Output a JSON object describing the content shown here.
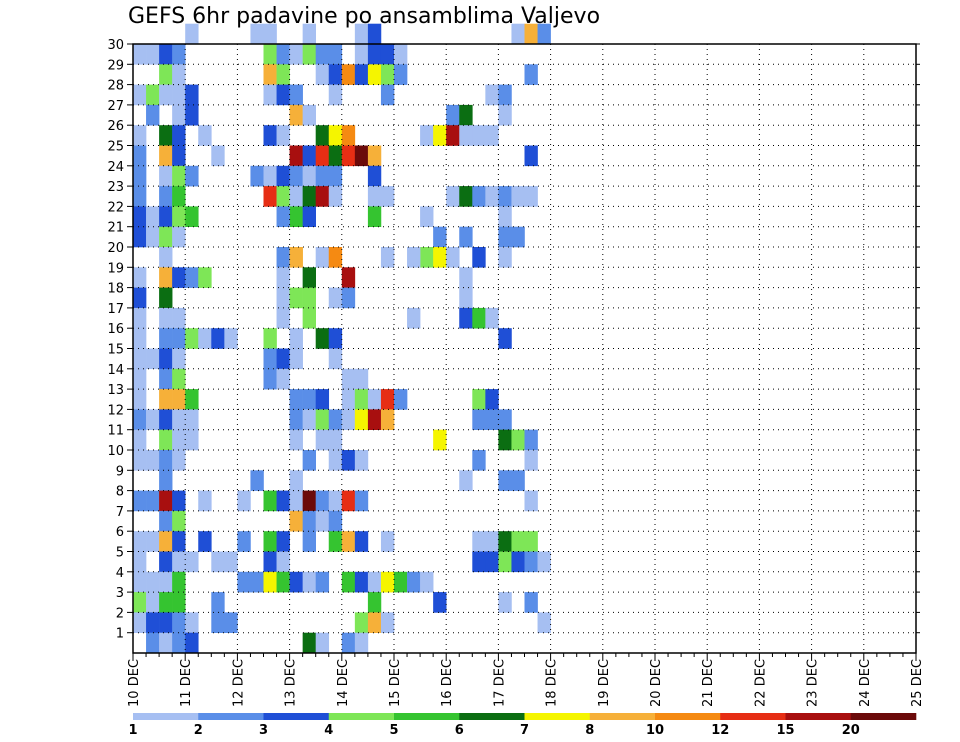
{
  "chart_data": {
    "type": "heatmap",
    "title": "GEFS 6hr padavine po ansamblima Valjevo",
    "xlabel": "",
    "ylabel": "",
    "x_ticks": [
      "10 DEC",
      "11 DEC",
      "12 DEC",
      "13 DEC",
      "14 DEC",
      "15 DEC",
      "16 DEC",
      "17 DEC",
      "18 DEC",
      "19 DEC",
      "20 DEC",
      "21 DEC",
      "22 DEC",
      "23 DEC",
      "24 DEC",
      "25 DEC"
    ],
    "y_ticks": [
      "1",
      "2",
      "3",
      "4",
      "5",
      "6",
      "7",
      "8",
      "9",
      "10",
      "11",
      "12",
      "13",
      "14",
      "15",
      "16",
      "17",
      "18",
      "19",
      "20",
      "21",
      "22",
      "23",
      "24",
      "25",
      "26",
      "27",
      "28",
      "29",
      "30"
    ],
    "y_range": [
      0,
      30
    ],
    "x_steps_per_day": 4,
    "grid": "dotted",
    "legend": {
      "position": "bottom",
      "labels": [
        "1",
        "2",
        "3",
        "4",
        "5",
        "6",
        "7",
        "8",
        "10",
        "12",
        "15",
        "20"
      ],
      "colors": [
        "#a6bff2",
        "#5a8ee8",
        "#1f4fd6",
        "#7ee657",
        "#35c430",
        "#0b6e12",
        "#f5f500",
        "#f6b039",
        "#f58a12",
        "#e62e14",
        "#a80f0f",
        "#6b0a0a"
      ]
    },
    "colorscale": [
      "#a6bff2",
      "#5a8ee8",
      "#1f4fd6",
      "#7ee657",
      "#35c430",
      "#0b6e12",
      "#f5f500",
      "#f6b039",
      "#f58a12",
      "#e62e14",
      "#a80f0f",
      "#6b0a0a"
    ],
    "cell_format": "[member, time_step_from_10DEC_00Z, color_class]",
    "cells": [
      [
        30,
        4,
        0
      ],
      [
        30,
        9,
        0
      ],
      [
        30,
        10,
        0
      ],
      [
        30,
        13,
        0
      ],
      [
        30,
        17,
        0
      ],
      [
        30,
        18,
        2
      ],
      [
        30,
        29,
        0
      ],
      [
        30,
        30,
        7
      ],
      [
        30,
        31,
        1
      ],
      [
        29,
        0,
        0
      ],
      [
        29,
        1,
        0
      ],
      [
        29,
        2,
        2
      ],
      [
        29,
        3,
        1
      ],
      [
        29,
        10,
        3
      ],
      [
        29,
        11,
        1
      ],
      [
        29,
        12,
        0
      ],
      [
        29,
        13,
        3
      ],
      [
        29,
        14,
        1
      ],
      [
        29,
        15,
        1
      ],
      [
        29,
        17,
        0
      ],
      [
        29,
        18,
        2
      ],
      [
        29,
        19,
        2
      ],
      [
        29,
        20,
        0
      ],
      [
        28,
        2,
        3
      ],
      [
        28,
        3,
        0
      ],
      [
        28,
        10,
        7
      ],
      [
        28,
        11,
        3
      ],
      [
        28,
        14,
        0
      ],
      [
        28,
        15,
        2
      ],
      [
        28,
        16,
        8
      ],
      [
        28,
        17,
        2
      ],
      [
        28,
        18,
        6
      ],
      [
        28,
        19,
        3
      ],
      [
        28,
        20,
        1
      ],
      [
        28,
        30,
        1
      ],
      [
        27,
        0,
        0
      ],
      [
        27,
        1,
        3
      ],
      [
        27,
        2,
        0
      ],
      [
        27,
        3,
        0
      ],
      [
        27,
        4,
        2
      ],
      [
        27,
        10,
        0
      ],
      [
        27,
        11,
        2
      ],
      [
        27,
        12,
        1
      ],
      [
        27,
        15,
        0
      ],
      [
        27,
        19,
        1
      ],
      [
        27,
        27,
        0
      ],
      [
        27,
        28,
        1
      ],
      [
        26,
        1,
        1
      ],
      [
        26,
        3,
        0
      ],
      [
        26,
        4,
        2
      ],
      [
        26,
        12,
        7
      ],
      [
        26,
        13,
        0
      ],
      [
        26,
        24,
        1
      ],
      [
        26,
        25,
        5
      ],
      [
        26,
        28,
        0
      ],
      [
        25,
        0,
        0
      ],
      [
        25,
        2,
        5
      ],
      [
        25,
        3,
        2
      ],
      [
        25,
        5,
        0
      ],
      [
        25,
        10,
        2
      ],
      [
        25,
        11,
        0
      ],
      [
        25,
        14,
        5
      ],
      [
        25,
        15,
        6
      ],
      [
        25,
        16,
        8
      ],
      [
        25,
        22,
        0
      ],
      [
        25,
        23,
        6
      ],
      [
        25,
        24,
        10
      ],
      [
        25,
        25,
        0
      ],
      [
        25,
        26,
        0
      ],
      [
        25,
        27,
        0
      ],
      [
        24,
        0,
        1
      ],
      [
        24,
        2,
        7
      ],
      [
        24,
        3,
        2
      ],
      [
        24,
        6,
        0
      ],
      [
        24,
        12,
        10
      ],
      [
        24,
        13,
        2
      ],
      [
        24,
        14,
        9
      ],
      [
        24,
        15,
        5
      ],
      [
        24,
        16,
        9
      ],
      [
        24,
        17,
        11
      ],
      [
        24,
        18,
        7
      ],
      [
        24,
        30,
        2
      ],
      [
        23,
        0,
        1
      ],
      [
        23,
        2,
        0
      ],
      [
        23,
        3,
        3
      ],
      [
        23,
        4,
        1
      ],
      [
        23,
        9,
        1
      ],
      [
        23,
        10,
        0
      ],
      [
        23,
        11,
        2
      ],
      [
        23,
        12,
        1
      ],
      [
        23,
        13,
        0
      ],
      [
        23,
        14,
        1
      ],
      [
        23,
        15,
        1
      ],
      [
        23,
        18,
        2
      ],
      [
        22,
        0,
        1
      ],
      [
        22,
        2,
        1
      ],
      [
        22,
        3,
        4
      ],
      [
        22,
        10,
        9
      ],
      [
        22,
        11,
        3
      ],
      [
        22,
        12,
        0
      ],
      [
        22,
        13,
        5
      ],
      [
        22,
        14,
        10
      ],
      [
        22,
        15,
        0
      ],
      [
        22,
        18,
        0
      ],
      [
        22,
        19,
        0
      ],
      [
        22,
        24,
        0
      ],
      [
        22,
        25,
        5
      ],
      [
        22,
        26,
        1
      ],
      [
        22,
        27,
        0
      ],
      [
        22,
        28,
        1
      ],
      [
        22,
        29,
        0
      ],
      [
        22,
        30,
        0
      ],
      [
        21,
        0,
        2
      ],
      [
        21,
        1,
        0
      ],
      [
        21,
        2,
        2
      ],
      [
        21,
        3,
        3
      ],
      [
        21,
        4,
        4
      ],
      [
        21,
        12,
        4
      ],
      [
        21,
        13,
        2
      ],
      [
        21,
        11,
        1
      ],
      [
        21,
        18,
        4
      ],
      [
        21,
        22,
        0
      ],
      [
        21,
        28,
        0
      ],
      [
        20,
        0,
        2
      ],
      [
        20,
        1,
        0
      ],
      [
        20,
        2,
        3
      ],
      [
        20,
        3,
        0
      ],
      [
        20,
        23,
        1
      ],
      [
        20,
        25,
        1
      ],
      [
        20,
        28,
        1
      ],
      [
        20,
        29,
        1
      ],
      [
        19,
        2,
        0
      ],
      [
        19,
        11,
        1
      ],
      [
        19,
        12,
        7
      ],
      [
        19,
        14,
        0
      ],
      [
        19,
        15,
        8
      ],
      [
        19,
        19,
        0
      ],
      [
        19,
        22,
        3
      ],
      [
        19,
        23,
        6
      ],
      [
        19,
        24,
        0
      ],
      [
        19,
        26,
        2
      ],
      [
        19,
        28,
        0
      ],
      [
        19,
        21,
        0
      ],
      [
        18,
        0,
        0
      ],
      [
        18,
        2,
        7
      ],
      [
        18,
        3,
        2
      ],
      [
        18,
        4,
        1
      ],
      [
        18,
        5,
        3
      ],
      [
        18,
        11,
        0
      ],
      [
        18,
        13,
        5
      ],
      [
        18,
        16,
        10
      ],
      [
        18,
        25,
        0
      ],
      [
        17,
        0,
        2
      ],
      [
        17,
        2,
        5
      ],
      [
        17,
        11,
        0
      ],
      [
        17,
        12,
        3
      ],
      [
        17,
        13,
        3
      ],
      [
        17,
        15,
        0
      ],
      [
        17,
        16,
        1
      ],
      [
        17,
        25,
        0
      ],
      [
        16,
        0,
        0
      ],
      [
        16,
        2,
        0
      ],
      [
        16,
        3,
        0
      ],
      [
        16,
        11,
        0
      ],
      [
        16,
        13,
        3
      ],
      [
        16,
        21,
        0
      ],
      [
        16,
        25,
        2
      ],
      [
        16,
        26,
        4
      ],
      [
        16,
        27,
        0
      ],
      [
        15,
        0,
        0
      ],
      [
        15,
        2,
        1
      ],
      [
        15,
        3,
        1
      ],
      [
        15,
        4,
        3
      ],
      [
        15,
        5,
        0
      ],
      [
        15,
        6,
        2
      ],
      [
        15,
        7,
        0
      ],
      [
        15,
        10,
        3
      ],
      [
        15,
        12,
        0
      ],
      [
        15,
        14,
        5
      ],
      [
        15,
        15,
        2
      ],
      [
        15,
        28,
        2
      ],
      [
        14,
        0,
        0
      ],
      [
        14,
        1,
        0
      ],
      [
        14,
        2,
        2
      ],
      [
        14,
        3,
        0
      ],
      [
        14,
        10,
        1
      ],
      [
        14,
        11,
        2
      ],
      [
        14,
        12,
        0
      ],
      [
        14,
        15,
        0
      ],
      [
        13,
        0,
        0
      ],
      [
        13,
        2,
        1
      ],
      [
        13,
        3,
        3
      ],
      [
        13,
        10,
        1
      ],
      [
        13,
        11,
        0
      ],
      [
        13,
        16,
        0
      ],
      [
        13,
        17,
        0
      ],
      [
        12,
        0,
        0
      ],
      [
        12,
        2,
        7
      ],
      [
        12,
        3,
        7
      ],
      [
        12,
        4,
        4
      ],
      [
        12,
        12,
        1
      ],
      [
        12,
        13,
        1
      ],
      [
        12,
        14,
        2
      ],
      [
        12,
        16,
        0
      ],
      [
        12,
        17,
        3
      ],
      [
        12,
        18,
        0
      ],
      [
        12,
        19,
        9
      ],
      [
        12,
        20,
        1
      ],
      [
        12,
        26,
        3
      ],
      [
        12,
        27,
        2
      ],
      [
        11,
        0,
        1
      ],
      [
        11,
        1,
        0
      ],
      [
        11,
        2,
        2
      ],
      [
        11,
        3,
        0
      ],
      [
        11,
        4,
        0
      ],
      [
        11,
        12,
        1
      ],
      [
        11,
        13,
        0
      ],
      [
        11,
        14,
        3
      ],
      [
        11,
        15,
        1
      ],
      [
        11,
        16,
        0
      ],
      [
        11,
        17,
        6
      ],
      [
        11,
        18,
        10
      ],
      [
        11,
        19,
        7
      ],
      [
        11,
        26,
        1
      ],
      [
        11,
        27,
        1
      ],
      [
        11,
        28,
        1
      ],
      [
        10,
        0,
        0
      ],
      [
        10,
        2,
        3
      ],
      [
        10,
        3,
        0
      ],
      [
        10,
        4,
        0
      ],
      [
        10,
        12,
        0
      ],
      [
        10,
        14,
        0
      ],
      [
        10,
        15,
        0
      ],
      [
        10,
        23,
        6
      ],
      [
        10,
        28,
        5
      ],
      [
        10,
        29,
        3
      ],
      [
        10,
        30,
        1
      ],
      [
        9,
        0,
        0
      ],
      [
        9,
        1,
        0
      ],
      [
        9,
        2,
        1
      ],
      [
        9,
        3,
        0
      ],
      [
        9,
        13,
        1
      ],
      [
        9,
        15,
        0
      ],
      [
        9,
        16,
        2
      ],
      [
        9,
        17,
        0
      ],
      [
        9,
        26,
        1
      ],
      [
        9,
        30,
        0
      ],
      [
        8,
        2,
        1
      ],
      [
        8,
        9,
        1
      ],
      [
        8,
        12,
        0
      ],
      [
        8,
        25,
        0
      ],
      [
        8,
        28,
        1
      ],
      [
        8,
        29,
        1
      ],
      [
        7,
        0,
        1
      ],
      [
        7,
        1,
        1
      ],
      [
        7,
        2,
        10
      ],
      [
        7,
        3,
        2
      ],
      [
        7,
        5,
        0
      ],
      [
        7,
        8,
        0
      ],
      [
        7,
        10,
        4
      ],
      [
        7,
        11,
        2
      ],
      [
        7,
        12,
        0
      ],
      [
        7,
        13,
        11
      ],
      [
        7,
        14,
        1
      ],
      [
        7,
        15,
        0
      ],
      [
        7,
        16,
        9
      ],
      [
        7,
        17,
        1
      ],
      [
        7,
        30,
        0
      ],
      [
        6,
        2,
        1
      ],
      [
        6,
        3,
        3
      ],
      [
        6,
        12,
        7
      ],
      [
        6,
        13,
        1
      ],
      [
        6,
        14,
        0
      ],
      [
        6,
        15,
        1
      ],
      [
        5,
        0,
        0
      ],
      [
        5,
        1,
        0
      ],
      [
        5,
        2,
        7
      ],
      [
        5,
        3,
        2
      ],
      [
        5,
        5,
        2
      ],
      [
        5,
        8,
        1
      ],
      [
        5,
        10,
        4
      ],
      [
        5,
        11,
        2
      ],
      [
        5,
        13,
        1
      ],
      [
        5,
        15,
        4
      ],
      [
        5,
        16,
        7
      ],
      [
        5,
        17,
        2
      ],
      [
        5,
        19,
        0
      ],
      [
        5,
        26,
        0
      ],
      [
        5,
        27,
        0
      ],
      [
        5,
        28,
        5
      ],
      [
        5,
        29,
        3
      ],
      [
        5,
        30,
        3
      ],
      [
        4,
        0,
        0
      ],
      [
        4,
        2,
        2
      ],
      [
        4,
        3,
        0
      ],
      [
        4,
        4,
        0
      ],
      [
        4,
        6,
        0
      ],
      [
        4,
        7,
        0
      ],
      [
        4,
        10,
        2
      ],
      [
        4,
        11,
        0
      ],
      [
        4,
        26,
        2
      ],
      [
        4,
        27,
        2
      ],
      [
        4,
        28,
        3
      ],
      [
        4,
        29,
        2
      ],
      [
        4,
        30,
        1
      ],
      [
        4,
        31,
        0
      ],
      [
        3,
        0,
        0
      ],
      [
        3,
        1,
        0
      ],
      [
        3,
        2,
        0
      ],
      [
        3,
        3,
        4
      ],
      [
        3,
        8,
        1
      ],
      [
        3,
        9,
        1
      ],
      [
        3,
        10,
        6
      ],
      [
        3,
        11,
        4
      ],
      [
        3,
        12,
        2
      ],
      [
        3,
        13,
        0
      ],
      [
        3,
        14,
        1
      ],
      [
        3,
        16,
        4
      ],
      [
        3,
        17,
        2
      ],
      [
        3,
        18,
        0
      ],
      [
        3,
        19,
        6
      ],
      [
        3,
        20,
        4
      ],
      [
        3,
        21,
        1
      ],
      [
        3,
        22,
        0
      ],
      [
        2,
        0,
        3
      ],
      [
        2,
        1,
        0
      ],
      [
        2,
        2,
        4
      ],
      [
        2,
        3,
        4
      ],
      [
        2,
        6,
        1
      ],
      [
        2,
        18,
        4
      ],
      [
        2,
        23,
        2
      ],
      [
        2,
        28,
        0
      ],
      [
        2,
        30,
        1
      ],
      [
        1,
        0,
        0
      ],
      [
        1,
        1,
        2
      ],
      [
        1,
        2,
        2
      ],
      [
        1,
        3,
        1
      ],
      [
        1,
        4,
        0
      ],
      [
        1,
        6,
        1
      ],
      [
        1,
        7,
        1
      ],
      [
        1,
        17,
        3
      ],
      [
        1,
        18,
        7
      ],
      [
        1,
        19,
        0
      ],
      [
        1,
        31,
        0
      ],
      [
        0,
        1,
        1
      ],
      [
        0,
        2,
        0
      ],
      [
        0,
        3,
        1
      ],
      [
        0,
        4,
        2
      ],
      [
        0,
        13,
        5
      ],
      [
        0,
        14,
        0
      ],
      [
        0,
        16,
        1
      ],
      [
        0,
        17,
        0
      ]
    ]
  }
}
